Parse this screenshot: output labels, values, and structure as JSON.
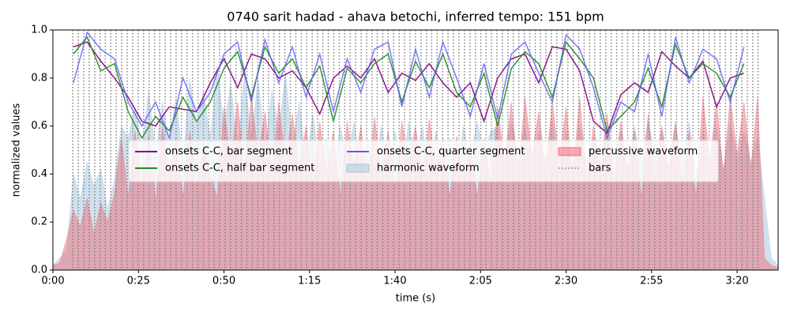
{
  "chart_data": {
    "type": "line",
    "title": "0740 sarit hadad - ahava betochi, inferred tempo: 151 bpm",
    "x_label": "time (s)",
    "y_label": "normalized values",
    "xlim": [
      0,
      212
    ],
    "ylim": [
      0,
      1
    ],
    "xticks": [
      {
        "value": 0,
        "label": "0:00"
      },
      {
        "value": 25,
        "label": "0:25"
      },
      {
        "value": 50,
        "label": "0:50"
      },
      {
        "value": 75,
        "label": "1:15"
      },
      {
        "value": 100,
        "label": "1:40"
      },
      {
        "value": 125,
        "label": "2:05"
      },
      {
        "value": 150,
        "label": "2:30"
      },
      {
        "value": 175,
        "label": "2:55"
      },
      {
        "value": 200,
        "label": "3:20"
      }
    ],
    "yticks": [
      {
        "value": 0,
        "label": "0.0"
      },
      0.2,
      0.4,
      0.6,
      0.8,
      {
        "value": 1,
        "label": "1.0"
      }
    ],
    "legend": "center",
    "legend_columns": 3,
    "series": [
      {
        "name": "onsets C-C, bar segment",
        "color": "#800080",
        "kind": "line",
        "x": [
          6,
          10,
          14,
          18,
          22,
          26,
          30,
          34,
          38,
          42,
          46,
          50,
          54,
          58,
          62,
          66,
          70,
          74,
          78,
          82,
          86,
          90,
          94,
          98,
          102,
          106,
          110,
          114,
          118,
          122,
          126,
          130,
          134,
          138,
          142,
          146,
          150,
          154,
          158,
          162,
          166,
          170,
          174,
          178,
          182,
          186,
          190,
          194,
          198,
          202
        ],
        "values": [
          0.93,
          0.95,
          0.87,
          0.8,
          0.72,
          0.62,
          0.6,
          0.68,
          0.67,
          0.66,
          0.78,
          0.88,
          0.76,
          0.9,
          0.88,
          0.8,
          0.83,
          0.76,
          0.65,
          0.8,
          0.85,
          0.8,
          0.88,
          0.74,
          0.82,
          0.79,
          0.86,
          0.78,
          0.72,
          0.78,
          0.62,
          0.8,
          0.88,
          0.9,
          0.78,
          0.93,
          0.92,
          0.83,
          0.62,
          0.57,
          0.73,
          0.78,
          0.74,
          0.91,
          0.85,
          0.8,
          0.87,
          0.68,
          0.8,
          0.82
        ]
      },
      {
        "name": "onsets C-C, half bar segment",
        "color": "#228b22",
        "kind": "line",
        "x": [
          6,
          10,
          14,
          18,
          22,
          26,
          30,
          34,
          38,
          42,
          46,
          50,
          54,
          58,
          62,
          66,
          70,
          74,
          78,
          82,
          86,
          90,
          94,
          98,
          102,
          106,
          110,
          114,
          118,
          122,
          126,
          130,
          134,
          138,
          142,
          146,
          150,
          154,
          158,
          162,
          166,
          170,
          174,
          178,
          182,
          186,
          190,
          194,
          198,
          202
        ],
        "values": [
          0.9,
          0.97,
          0.83,
          0.86,
          0.66,
          0.55,
          0.64,
          0.58,
          0.72,
          0.62,
          0.7,
          0.84,
          0.91,
          0.72,
          0.93,
          0.82,
          0.88,
          0.76,
          0.85,
          0.62,
          0.84,
          0.78,
          0.86,
          0.9,
          0.7,
          0.87,
          0.76,
          0.9,
          0.74,
          0.68,
          0.82,
          0.6,
          0.84,
          0.91,
          0.86,
          0.72,
          0.95,
          0.88,
          0.8,
          0.58,
          0.64,
          0.7,
          0.84,
          0.68,
          0.94,
          0.8,
          0.86,
          0.82,
          0.72,
          0.86
        ]
      },
      {
        "name": "onsets C-C, quarter segment",
        "color": "#5c5cf5",
        "kind": "line",
        "x": [
          6,
          10,
          14,
          18,
          22,
          26,
          30,
          34,
          38,
          42,
          46,
          50,
          54,
          58,
          62,
          66,
          70,
          74,
          78,
          82,
          86,
          90,
          94,
          98,
          102,
          106,
          110,
          114,
          118,
          122,
          126,
          130,
          134,
          138,
          142,
          146,
          150,
          154,
          158,
          162,
          166,
          170,
          174,
          178,
          182,
          186,
          190,
          194,
          198,
          202
        ],
        "values": [
          0.78,
          0.99,
          0.92,
          0.88,
          0.7,
          0.6,
          0.7,
          0.55,
          0.8,
          0.66,
          0.74,
          0.9,
          0.95,
          0.7,
          0.96,
          0.78,
          0.93,
          0.72,
          0.9,
          0.66,
          0.88,
          0.74,
          0.92,
          0.95,
          0.68,
          0.92,
          0.72,
          0.95,
          0.8,
          0.64,
          0.86,
          0.63,
          0.9,
          0.95,
          0.82,
          0.7,
          0.98,
          0.92,
          0.76,
          0.55,
          0.7,
          0.66,
          0.9,
          0.64,
          0.97,
          0.78,
          0.92,
          0.88,
          0.7,
          0.93
        ]
      },
      {
        "name": "harmonic waveform",
        "color": "#a9c8e0",
        "kind": "area",
        "x": [
          0,
          2,
          4,
          6,
          8,
          10,
          12,
          14,
          16,
          18,
          20,
          22,
          24,
          26,
          28,
          30,
          32,
          34,
          36,
          38,
          40,
          42,
          44,
          46,
          48,
          50,
          52,
          54,
          56,
          58,
          60,
          62,
          64,
          66,
          68,
          70,
          72,
          74,
          76,
          78,
          80,
          82,
          84,
          86,
          88,
          90,
          92,
          94,
          96,
          98,
          100,
          102,
          104,
          106,
          108,
          110,
          112,
          114,
          116,
          118,
          120,
          122,
          124,
          126,
          128,
          130,
          132,
          134,
          136,
          138,
          140,
          142,
          144,
          146,
          148,
          150,
          152,
          154,
          156,
          158,
          160,
          162,
          164,
          166,
          168,
          170,
          172,
          174,
          176,
          178,
          180,
          182,
          184,
          186,
          188,
          190,
          192,
          194,
          196,
          198,
          200,
          202,
          204,
          206,
          208,
          210,
          212
        ],
        "values": [
          0.02,
          0.05,
          0.08,
          0.4,
          0.3,
          0.45,
          0.35,
          0.42,
          0.25,
          0.38,
          0.6,
          0.55,
          0.68,
          0.5,
          0.75,
          0.48,
          0.7,
          0.52,
          0.72,
          0.45,
          0.8,
          0.6,
          0.75,
          0.55,
          0.85,
          0.6,
          0.78,
          0.5,
          0.82,
          0.55,
          0.8,
          0.5,
          0.75,
          0.58,
          0.82,
          0.52,
          0.7,
          0.45,
          0.65,
          0.42,
          0.55,
          0.4,
          0.6,
          0.45,
          0.62,
          0.4,
          0.55,
          0.42,
          0.6,
          0.45,
          0.58,
          0.4,
          0.62,
          0.45,
          0.6,
          0.42,
          0.58,
          0.4,
          0.55,
          0.38,
          0.6,
          0.45,
          0.62,
          0.48,
          0.58,
          0.6,
          0.45,
          0.62,
          0.48,
          0.6,
          0.42,
          0.58,
          0.45,
          0.62,
          0.4,
          0.58,
          0.42,
          0.6,
          0.45,
          0.55,
          0.4,
          0.62,
          0.48,
          0.58,
          0.42,
          0.6,
          0.45,
          0.62,
          0.48,
          0.58,
          0.42,
          0.6,
          0.45,
          0.62,
          0.4,
          0.58,
          0.45,
          0.6,
          0.42,
          0.62,
          0.45,
          0.58,
          0.45,
          0.55,
          0.3,
          0.05,
          0.02
        ]
      },
      {
        "name": "percussive waveform",
        "color": "#ee6e78",
        "kind": "area",
        "x": [
          0,
          2,
          4,
          6,
          8,
          10,
          12,
          14,
          16,
          18,
          20,
          22,
          24,
          26,
          28,
          30,
          32,
          34,
          36,
          38,
          40,
          42,
          44,
          46,
          48,
          50,
          52,
          54,
          56,
          58,
          60,
          62,
          64,
          66,
          68,
          70,
          72,
          74,
          76,
          78,
          80,
          82,
          84,
          86,
          88,
          90,
          92,
          94,
          96,
          98,
          100,
          102,
          104,
          106,
          108,
          110,
          112,
          114,
          116,
          118,
          120,
          122,
          124,
          126,
          128,
          130,
          132,
          134,
          136,
          138,
          140,
          142,
          144,
          146,
          148,
          150,
          152,
          154,
          156,
          158,
          160,
          162,
          164,
          166,
          168,
          170,
          172,
          174,
          176,
          178,
          180,
          182,
          184,
          186,
          188,
          190,
          192,
          194,
          196,
          198,
          200,
          202,
          204,
          206,
          208,
          210,
          212
        ],
        "values": [
          0.02,
          0.03,
          0.13,
          0.25,
          0.18,
          0.3,
          0.15,
          0.28,
          0.2,
          0.32,
          0.55,
          0.3,
          0.58,
          0.35,
          0.56,
          0.28,
          0.6,
          0.4,
          0.55,
          0.3,
          0.58,
          0.35,
          0.52,
          0.4,
          0.3,
          0.68,
          0.45,
          0.7,
          0.4,
          0.72,
          0.48,
          0.66,
          0.38,
          0.7,
          0.45,
          0.65,
          0.42,
          0.6,
          0.35,
          0.62,
          0.4,
          0.58,
          0.3,
          0.62,
          0.42,
          0.6,
          0.36,
          0.64,
          0.4,
          0.58,
          0.34,
          0.62,
          0.45,
          0.6,
          0.38,
          0.63,
          0.42,
          0.55,
          0.3,
          0.56,
          0.38,
          0.52,
          0.3,
          0.55,
          0.35,
          0.68,
          0.45,
          0.7,
          0.4,
          0.72,
          0.48,
          0.66,
          0.42,
          0.7,
          0.45,
          0.68,
          0.4,
          0.72,
          0.38,
          0.6,
          0.42,
          0.65,
          0.35,
          0.62,
          0.4,
          0.58,
          0.3,
          0.65,
          0.38,
          0.6,
          0.42,
          0.62,
          0.35,
          0.58,
          0.3,
          0.72,
          0.45,
          0.7,
          0.4,
          0.72,
          0.48,
          0.7,
          0.42,
          0.72,
          0.05,
          0.02,
          0.01
        ]
      },
      {
        "name": "bars",
        "color": "#808080",
        "kind": "vlines",
        "x": [
          5.8,
          7.4,
          9.0,
          10.6,
          12.2,
          13.8,
          15.3,
          16.9,
          18.5,
          20.1,
          21.7,
          23.3,
          24.9,
          26.5,
          28.1,
          29.7,
          31.2,
          32.8,
          34.4,
          36.0,
          37.6,
          39.2,
          40.8,
          42.4,
          44.0,
          45.6,
          47.1,
          48.7,
          50.3,
          51.9,
          53.5,
          55.1,
          56.7,
          58.3,
          59.9,
          61.5,
          63.0,
          64.6,
          66.2,
          67.8,
          69.4,
          71.0,
          72.6,
          74.2,
          75.8,
          77.4,
          78.9,
          80.5,
          82.1,
          83.7,
          85.3,
          86.9,
          88.5,
          90.1,
          91.7,
          93.3,
          94.8,
          96.4,
          98.0,
          99.6,
          101.2,
          102.8,
          104.4,
          106.0,
          107.6,
          109.2,
          110.7,
          112.3,
          113.9,
          115.5,
          117.1,
          118.7,
          120.3,
          121.9,
          123.5,
          125.1,
          126.6,
          128.2,
          129.8,
          131.4,
          133.0,
          134.6,
          136.2,
          137.8,
          139.4,
          141.0,
          142.5,
          144.1,
          145.7,
          147.3,
          148.9,
          150.5,
          152.1,
          153.7,
          155.3,
          156.9,
          158.4,
          160.0,
          161.6,
          163.2,
          164.8,
          166.4,
          168.0,
          169.6,
          171.2,
          172.8,
          174.3,
          175.9,
          177.5,
          179.1,
          180.7,
          182.3,
          183.9,
          185.5,
          187.1,
          188.7,
          190.2,
          191.8,
          193.4,
          195.0,
          196.6,
          198.2,
          199.8,
          201.4,
          203.0,
          204.6,
          206.1
        ]
      }
    ]
  }
}
